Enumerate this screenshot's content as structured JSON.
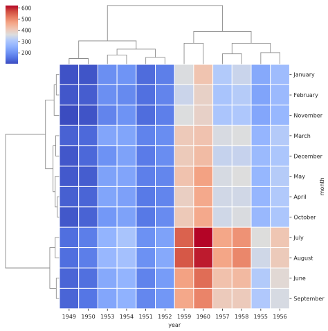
{
  "chart_data": {
    "type": "heatmap",
    "title": "",
    "xlabel": "year",
    "ylabel": "month",
    "x_categories": [
      "1949",
      "1950",
      "1953",
      "1954",
      "1951",
      "1952",
      "1959",
      "1960",
      "1957",
      "1958",
      "1955",
      "1956"
    ],
    "y_categories": [
      "January",
      "February",
      "November",
      "March",
      "December",
      "May",
      "April",
      "October",
      "July",
      "August",
      "June",
      "September"
    ],
    "values": [
      [
        112,
        115,
        196,
        204,
        145,
        171,
        360,
        417,
        315,
        340,
        242,
        284
      ],
      [
        118,
        126,
        196,
        188,
        150,
        180,
        342,
        391,
        301,
        318,
        233,
        277
      ],
      [
        104,
        114,
        180,
        203,
        146,
        172,
        362,
        390,
        305,
        310,
        237,
        271
      ],
      [
        132,
        141,
        236,
        235,
        178,
        193,
        406,
        419,
        356,
        362,
        267,
        317
      ],
      [
        118,
        140,
        201,
        229,
        166,
        194,
        405,
        432,
        336,
        337,
        278,
        306
      ],
      [
        121,
        125,
        229,
        234,
        172,
        183,
        420,
        472,
        355,
        363,
        270,
        318
      ],
      [
        129,
        135,
        235,
        227,
        163,
        181,
        396,
        461,
        348,
        348,
        269,
        313
      ],
      [
        119,
        133,
        211,
        229,
        162,
        191,
        407,
        461,
        347,
        359,
        274,
        306
      ],
      [
        148,
        170,
        264,
        302,
        199,
        230,
        548,
        622,
        465,
        491,
        364,
        413
      ],
      [
        148,
        170,
        272,
        293,
        199,
        242,
        559,
        606,
        467,
        505,
        347,
        405
      ],
      [
        135,
        149,
        243,
        264,
        178,
        218,
        472,
        535,
        422,
        435,
        315,
        374
      ],
      [
        136,
        158,
        237,
        259,
        184,
        209,
        463,
        508,
        404,
        404,
        312,
        355
      ]
    ],
    "colormap": "coolwarm",
    "vmin": 104,
    "vmax": 622,
    "colorbar_ticks": [
      200,
      300,
      400,
      500,
      600
    ],
    "grid": false,
    "legend": "colorbar top-left"
  }
}
